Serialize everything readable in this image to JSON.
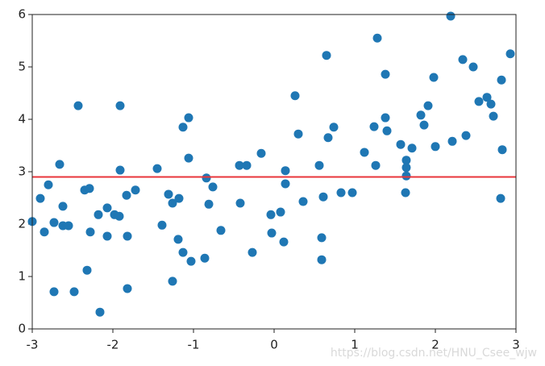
{
  "chart_data": {
    "type": "scatter",
    "x": [
      -3.0,
      -2.9,
      -2.85,
      -2.8,
      -2.73,
      -2.73,
      -2.66,
      -2.62,
      -2.62,
      -2.55,
      -2.48,
      -2.43,
      -2.35,
      -2.29,
      -2.32,
      -2.28,
      -2.18,
      -2.16,
      -2.07,
      -2.07,
      -1.98,
      -1.92,
      -1.91,
      -1.91,
      -1.83,
      -1.82,
      -1.82,
      -1.72,
      -1.45,
      -1.39,
      -1.31,
      -1.26,
      -1.26,
      -1.18,
      -1.19,
      -1.13,
      -1.13,
      -1.06,
      -1.06,
      -1.03,
      -0.86,
      -0.84,
      -0.81,
      -0.76,
      -0.66,
      -0.43,
      -0.42,
      -0.34,
      -0.27,
      -0.16,
      -0.04,
      -0.03,
      0.08,
      0.12,
      0.14,
      0.14,
      0.26,
      0.3,
      0.36,
      0.56,
      0.59,
      0.59,
      0.61,
      0.65,
      0.67,
      0.74,
      0.83,
      0.97,
      1.12,
      1.24,
      1.26,
      1.28,
      1.38,
      1.38,
      1.4,
      1.57,
      1.64,
      1.64,
      1.64,
      1.63,
      1.71,
      1.82,
      1.86,
      1.91,
      1.98,
      2.0,
      2.19,
      2.21,
      2.34,
      2.38,
      2.47,
      2.54,
      2.64,
      2.69,
      2.72,
      2.82,
      2.83,
      2.81,
      2.93
    ],
    "values": [
      2.05,
      2.49,
      1.85,
      2.75,
      2.03,
      0.71,
      3.14,
      2.34,
      1.97,
      1.97,
      0.71,
      4.26,
      2.65,
      2.68,
      1.12,
      1.85,
      2.18,
      0.32,
      2.31,
      1.77,
      2.18,
      2.15,
      4.26,
      3.03,
      2.55,
      1.77,
      0.77,
      2.65,
      3.06,
      1.98,
      2.57,
      2.4,
      0.91,
      2.49,
      1.71,
      3.85,
      1.46,
      4.03,
      3.26,
      1.29,
      1.35,
      2.88,
      2.38,
      2.71,
      1.88,
      3.12,
      2.4,
      3.12,
      1.46,
      3.35,
      2.18,
      1.83,
      2.23,
      1.66,
      3.02,
      2.77,
      4.45,
      3.72,
      2.43,
      3.12,
      1.74,
      1.32,
      2.52,
      5.22,
      3.65,
      3.85,
      2.6,
      2.6,
      3.37,
      3.86,
      3.12,
      5.55,
      4.86,
      4.03,
      3.78,
      3.52,
      3.22,
      3.08,
      2.92,
      2.6,
      3.45,
      4.08,
      3.89,
      4.26,
      4.8,
      3.48,
      5.97,
      3.58,
      5.14,
      3.69,
      5.0,
      4.34,
      4.42,
      4.29,
      4.06,
      4.75,
      3.42,
      2.49,
      5.25
    ],
    "color": "#1f77b4",
    "hline": 2.9,
    "hline_color": "#e8363b",
    "xlim": [
      -3,
      3
    ],
    "ylim": [
      0,
      6
    ],
    "xticks": [
      -3,
      -2,
      -1,
      0,
      1,
      2,
      3
    ],
    "yticks": [
      0,
      1,
      2,
      3,
      4,
      5,
      6
    ],
    "watermark": "https://blog.csdn.net/HNU_Csee_wjw"
  }
}
